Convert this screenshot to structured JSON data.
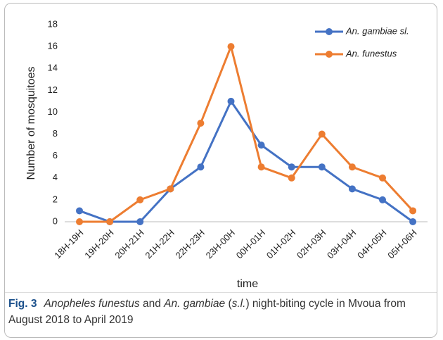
{
  "chart_data": {
    "type": "line",
    "categories": [
      "18H-19H",
      "19H-20H",
      "20H-21H",
      "21H-22H",
      "22H-23H",
      "23H-00H",
      "00H-01H",
      "01H-02H",
      "02H-03H",
      "03H-04H",
      "04H-05H",
      "05H-06H"
    ],
    "series": [
      {
        "name": "An. gambiae sl.",
        "color": "#4472c4",
        "values": [
          1,
          0,
          0,
          3,
          5,
          11,
          7,
          5,
          5,
          3,
          2,
          0
        ]
      },
      {
        "name": "An. funestus",
        "color": "#ed7d31",
        "values": [
          0,
          0,
          2,
          3,
          9,
          16,
          5,
          4,
          8,
          5,
          4,
          1
        ]
      }
    ],
    "ylim": [
      0,
      18
    ],
    "yticks": [
      0,
      2,
      4,
      6,
      8,
      10,
      12,
      14,
      16,
      18
    ],
    "x_label": "time",
    "y_label": "Number of mosquitoes",
    "legend": "top-right",
    "grid": false
  },
  "caption": {
    "label": "Fig. 3",
    "parts": [
      {
        "text": "Anopheles funestus",
        "italic": true
      },
      {
        "text": " and ",
        "italic": false
      },
      {
        "text": "An. gambiae",
        "italic": true
      },
      {
        "text": " (",
        "italic": false
      },
      {
        "text": "s.l.",
        "italic": true
      },
      {
        "text": ") night-biting cycle in Mvoua from August 2018 to April 2019",
        "italic": false
      }
    ]
  }
}
